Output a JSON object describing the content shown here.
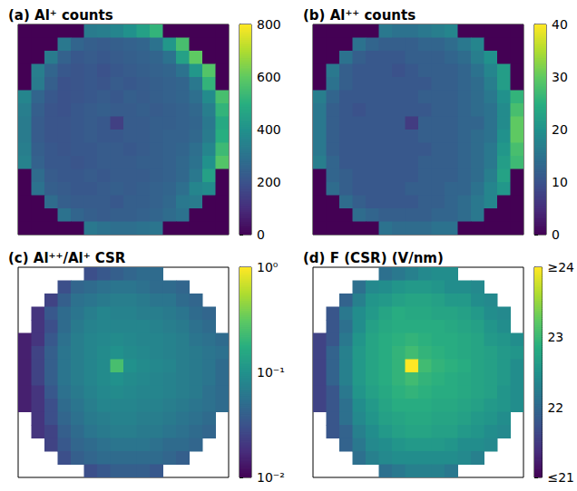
{
  "chart_data": [
    {
      "type": "heatmap",
      "title": "(a) Al⁺ counts",
      "color": "viridis",
      "tick_labels": false,
      "colorbar_lim": [
        0,
        800
      ],
      "colorbar_ticks": [
        0,
        200,
        400,
        600,
        800
      ],
      "cells": [
        [
          0,
          0,
          0,
          0,
          0,
          330,
          340,
          360,
          400,
          450,
          520,
          0,
          0,
          0,
          0,
          0
        ],
        [
          0,
          0,
          0,
          320,
          260,
          240,
          230,
          240,
          250,
          260,
          300,
          420,
          560,
          0,
          0,
          0
        ],
        [
          0,
          0,
          330,
          250,
          220,
          230,
          220,
          230,
          240,
          250,
          260,
          300,
          450,
          600,
          0,
          0
        ],
        [
          0,
          340,
          260,
          220,
          210,
          220,
          200,
          220,
          230,
          240,
          250,
          260,
          300,
          420,
          580,
          0
        ],
        [
          0,
          330,
          240,
          200,
          210,
          220,
          210,
          230,
          220,
          230,
          240,
          250,
          260,
          320,
          520,
          0
        ],
        [
          360,
          260,
          220,
          200,
          210,
          220,
          230,
          220,
          240,
          230,
          240,
          250,
          260,
          290,
          380,
          560
        ],
        [
          340,
          240,
          210,
          200,
          220,
          230,
          240,
          230,
          230,
          240,
          230,
          240,
          250,
          270,
          340,
          520
        ],
        [
          330,
          230,
          210,
          210,
          220,
          230,
          220,
          150,
          230,
          230,
          240,
          240,
          250,
          260,
          320,
          480
        ],
        [
          330,
          230,
          210,
          210,
          220,
          230,
          220,
          220,
          230,
          230,
          240,
          250,
          250,
          270,
          330,
          500
        ],
        [
          340,
          240,
          220,
          210,
          220,
          220,
          230,
          230,
          220,
          230,
          240,
          250,
          260,
          290,
          360,
          540
        ],
        [
          350,
          250,
          220,
          220,
          210,
          220,
          230,
          230,
          230,
          240,
          240,
          250,
          270,
          300,
          400,
          580
        ],
        [
          0,
          280,
          230,
          220,
          220,
          230,
          220,
          230,
          230,
          230,
          240,
          250,
          270,
          320,
          450,
          0
        ],
        [
          0,
          300,
          240,
          230,
          220,
          220,
          230,
          240,
          230,
          240,
          250,
          260,
          290,
          360,
          380,
          0
        ],
        [
          0,
          0,
          280,
          240,
          230,
          230,
          230,
          220,
          240,
          240,
          250,
          270,
          320,
          330,
          0,
          0
        ],
        [
          0,
          0,
          0,
          300,
          260,
          240,
          230,
          240,
          240,
          250,
          260,
          280,
          300,
          0,
          0,
          0
        ],
        [
          0,
          0,
          0,
          0,
          0,
          320,
          300,
          290,
          290,
          300,
          310,
          0,
          0,
          0,
          0,
          0
        ]
      ]
    },
    {
      "type": "heatmap",
      "title": "(b) Al⁺⁺ counts",
      "color": "viridis",
      "tick_labels": false,
      "colorbar_lim": [
        0,
        40
      ],
      "colorbar_ticks": [
        0,
        10,
        20,
        30,
        40
      ],
      "cells": [
        [
          0,
          0,
          0,
          0,
          0,
          16,
          15,
          15,
          16,
          17,
          18,
          0,
          0,
          0,
          0,
          0
        ],
        [
          0,
          0,
          0,
          15,
          13,
          12,
          12,
          12,
          13,
          13,
          14,
          16,
          18,
          0,
          0,
          0
        ],
        [
          0,
          0,
          15,
          12,
          11,
          11,
          11,
          12,
          12,
          12,
          13,
          14,
          17,
          20,
          0,
          0
        ],
        [
          0,
          16,
          12,
          11,
          11,
          11,
          10,
          11,
          12,
          12,
          12,
          13,
          15,
          18,
          22,
          0
        ],
        [
          0,
          15,
          12,
          11,
          11,
          11,
          11,
          11,
          11,
          12,
          12,
          13,
          14,
          17,
          22,
          0
        ],
        [
          17,
          13,
          11,
          11,
          11,
          11,
          11,
          11,
          12,
          12,
          12,
          13,
          14,
          16,
          20,
          26
        ],
        [
          16,
          12,
          11,
          10,
          11,
          11,
          11,
          11,
          11,
          12,
          12,
          13,
          14,
          15,
          19,
          28
        ],
        [
          16,
          12,
          11,
          11,
          11,
          11,
          11,
          7,
          12,
          12,
          12,
          13,
          13,
          15,
          19,
          30
        ],
        [
          16,
          12,
          11,
          11,
          11,
          11,
          11,
          11,
          12,
          12,
          12,
          13,
          14,
          15,
          20,
          30
        ],
        [
          16,
          12,
          11,
          11,
          11,
          11,
          11,
          11,
          11,
          12,
          12,
          13,
          14,
          16,
          21,
          28
        ],
        [
          17,
          13,
          11,
          11,
          11,
          11,
          11,
          11,
          12,
          12,
          12,
          13,
          14,
          16,
          22,
          27
        ],
        [
          0,
          13,
          12,
          11,
          11,
          11,
          11,
          11,
          12,
          12,
          12,
          13,
          14,
          17,
          23,
          0
        ],
        [
          0,
          14,
          12,
          11,
          11,
          11,
          11,
          12,
          12,
          12,
          13,
          13,
          15,
          18,
          21,
          0
        ],
        [
          0,
          0,
          14,
          12,
          11,
          11,
          11,
          11,
          12,
          12,
          13,
          14,
          16,
          18,
          0,
          0
        ],
        [
          0,
          0,
          0,
          14,
          13,
          12,
          12,
          12,
          12,
          13,
          13,
          14,
          16,
          0,
          0,
          0
        ],
        [
          0,
          0,
          0,
          0,
          0,
          15,
          14,
          14,
          14,
          15,
          15,
          0,
          0,
          0,
          0,
          0
        ]
      ]
    },
    {
      "type": "heatmap",
      "title": "(c) Al⁺⁺/Al⁺ CSR",
      "color": "viridis",
      "tick_labels": false,
      "log": true,
      "colorbar_lim": [
        0.01,
        1
      ],
      "colorbar_ticks": [
        {
          "value": 1,
          "label": "10⁰"
        },
        {
          "value": 0.1,
          "label": "10⁻¹"
        },
        {
          "value": 0.01,
          "label": "10⁻²"
        }
      ],
      "cells": [
        [
          null,
          null,
          null,
          null,
          null,
          0.03,
          0.035,
          0.04,
          0.045,
          0.05,
          0.05,
          null,
          null,
          null,
          null,
          null
        ],
        [
          null,
          null,
          null,
          0.03,
          0.045,
          0.05,
          0.055,
          0.06,
          0.06,
          0.055,
          0.05,
          0.05,
          0.045,
          null,
          null,
          null
        ],
        [
          null,
          null,
          0.025,
          0.04,
          0.055,
          0.06,
          0.065,
          0.07,
          0.07,
          0.065,
          0.06,
          0.06,
          0.05,
          0.045,
          null,
          null
        ],
        [
          null,
          0.02,
          0.035,
          0.05,
          0.06,
          0.07,
          0.08,
          0.075,
          0.075,
          0.07,
          0.07,
          0.065,
          0.06,
          0.05,
          0.045,
          null
        ],
        [
          null,
          0.02,
          0.03,
          0.05,
          0.065,
          0.075,
          0.08,
          0.08,
          0.08,
          0.08,
          0.075,
          0.07,
          0.065,
          0.055,
          0.05,
          null
        ],
        [
          0.015,
          0.02,
          0.035,
          0.055,
          0.07,
          0.08,
          0.085,
          0.09,
          0.085,
          0.08,
          0.08,
          0.075,
          0.07,
          0.06,
          0.055,
          0.05
        ],
        [
          0.015,
          0.025,
          0.04,
          0.06,
          0.07,
          0.08,
          0.09,
          0.1,
          0.09,
          0.085,
          0.08,
          0.075,
          0.07,
          0.065,
          0.06,
          0.055
        ],
        [
          0.015,
          0.025,
          0.04,
          0.06,
          0.07,
          0.08,
          0.09,
          0.25,
          0.1,
          0.09,
          0.085,
          0.08,
          0.07,
          0.065,
          0.06,
          0.05
        ],
        [
          0.015,
          0.025,
          0.04,
          0.06,
          0.07,
          0.08,
          0.09,
          0.1,
          0.09,
          0.085,
          0.08,
          0.075,
          0.07,
          0.065,
          0.06,
          0.05
        ],
        [
          0.015,
          0.02,
          0.035,
          0.055,
          0.065,
          0.075,
          0.085,
          0.09,
          0.085,
          0.08,
          0.08,
          0.075,
          0.07,
          0.065,
          0.055,
          0.05
        ],
        [
          0.015,
          0.02,
          0.03,
          0.05,
          0.06,
          0.07,
          0.08,
          0.08,
          0.08,
          0.075,
          0.075,
          0.07,
          0.065,
          0.06,
          0.055,
          0.05
        ],
        [
          null,
          0.02,
          0.03,
          0.045,
          0.055,
          0.065,
          0.07,
          0.075,
          0.075,
          0.07,
          0.07,
          0.065,
          0.06,
          0.055,
          0.05,
          null
        ],
        [
          null,
          0.02,
          0.025,
          0.04,
          0.05,
          0.06,
          0.065,
          0.07,
          0.07,
          0.065,
          0.065,
          0.06,
          0.055,
          0.05,
          0.045,
          null
        ],
        [
          null,
          null,
          0.025,
          0.035,
          0.045,
          0.05,
          0.055,
          0.06,
          0.06,
          0.06,
          0.055,
          0.05,
          0.05,
          0.045,
          null,
          null
        ],
        [
          null,
          null,
          null,
          0.03,
          0.04,
          0.045,
          0.05,
          0.05,
          0.05,
          0.05,
          0.05,
          0.045,
          0.04,
          null,
          null,
          null
        ],
        [
          null,
          null,
          null,
          null,
          null,
          0.03,
          0.035,
          0.04,
          0.04,
          0.04,
          0.035,
          null,
          null,
          null,
          null,
          null
        ]
      ]
    },
    {
      "type": "heatmap",
      "title": "(d) F (CSR) (V/nm)",
      "color": "viridis",
      "tick_labels": false,
      "colorbar_lim": [
        21,
        24
      ],
      "colorbar_ticks": [
        {
          "value": 21,
          "label": "≤21"
        },
        22,
        23,
        {
          "value": 24,
          "label": "≥24"
        }
      ],
      "cells": [
        [
          null,
          null,
          null,
          null,
          null,
          22.1,
          22.2,
          22.3,
          22.4,
          22.45,
          22.45,
          null,
          null,
          null,
          null,
          null
        ],
        [
          null,
          null,
          null,
          22.1,
          22.4,
          22.45,
          22.55,
          22.6,
          22.6,
          22.55,
          22.45,
          22.45,
          22.4,
          null,
          null,
          null
        ],
        [
          null,
          null,
          21.95,
          22.3,
          22.55,
          22.6,
          22.7,
          22.75,
          22.75,
          22.7,
          22.6,
          22.6,
          22.45,
          22.4,
          null,
          null
        ],
        [
          null,
          21.8,
          22.2,
          22.45,
          22.6,
          22.75,
          22.85,
          22.8,
          22.8,
          22.75,
          22.75,
          22.7,
          22.6,
          22.45,
          22.4,
          null
        ],
        [
          null,
          21.8,
          22.1,
          22.45,
          22.7,
          22.8,
          22.85,
          22.85,
          22.85,
          22.85,
          22.8,
          22.75,
          22.7,
          22.55,
          22.45,
          null
        ],
        [
          21.6,
          21.8,
          22.2,
          22.55,
          22.75,
          22.85,
          22.9,
          22.95,
          22.9,
          22.85,
          22.85,
          22.8,
          22.75,
          22.6,
          22.55,
          22.45
        ],
        [
          21.6,
          21.95,
          22.3,
          22.6,
          22.75,
          22.85,
          22.95,
          23.05,
          22.95,
          22.9,
          22.85,
          22.8,
          22.75,
          22.7,
          22.6,
          22.55
        ],
        [
          21.6,
          21.95,
          22.3,
          22.6,
          22.75,
          22.85,
          22.95,
          24.0,
          23.05,
          22.95,
          22.9,
          22.85,
          22.75,
          22.7,
          22.6,
          22.45
        ],
        [
          21.6,
          21.95,
          22.3,
          22.6,
          22.75,
          22.85,
          22.95,
          23.05,
          22.95,
          22.9,
          22.85,
          22.8,
          22.75,
          22.7,
          22.6,
          22.45
        ],
        [
          21.6,
          21.8,
          22.2,
          22.55,
          22.7,
          22.8,
          22.9,
          22.95,
          22.9,
          22.85,
          22.85,
          22.8,
          22.75,
          22.7,
          22.55,
          22.45
        ],
        [
          21.6,
          21.8,
          22.1,
          22.45,
          22.6,
          22.75,
          22.85,
          22.85,
          22.85,
          22.8,
          22.8,
          22.75,
          22.7,
          22.6,
          22.55,
          22.45
        ],
        [
          null,
          21.8,
          22.1,
          22.4,
          22.55,
          22.7,
          22.75,
          22.8,
          22.8,
          22.75,
          22.75,
          22.7,
          22.6,
          22.55,
          22.45,
          null
        ],
        [
          null,
          21.8,
          21.95,
          22.3,
          22.45,
          22.6,
          22.7,
          22.75,
          22.75,
          22.7,
          22.7,
          22.6,
          22.55,
          22.45,
          22.4,
          null
        ],
        [
          null,
          null,
          21.95,
          22.2,
          22.4,
          22.45,
          22.55,
          22.6,
          22.6,
          22.6,
          22.55,
          22.45,
          22.45,
          22.4,
          null,
          null
        ],
        [
          null,
          null,
          null,
          22.1,
          22.3,
          22.4,
          22.45,
          22.45,
          22.45,
          22.45,
          22.45,
          22.4,
          22.3,
          null,
          null,
          null
        ],
        [
          null,
          null,
          null,
          null,
          null,
          22.1,
          22.2,
          22.3,
          22.3,
          22.3,
          22.2,
          null,
          null,
          null,
          null,
          null
        ]
      ]
    }
  ]
}
